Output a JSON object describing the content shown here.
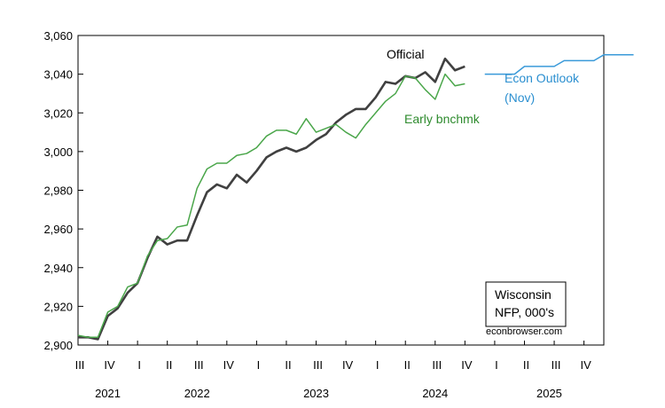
{
  "chart_data": {
    "type": "line",
    "title": "",
    "xlabel": "",
    "ylabel": "",
    "ylim": [
      2900,
      3060
    ],
    "y_ticks": [
      "2,900",
      "2,920",
      "2,940",
      "2,960",
      "2,980",
      "3,000",
      "3,020",
      "3,040",
      "3,060"
    ],
    "y_tick_values": [
      2900,
      2920,
      2940,
      2960,
      2980,
      3000,
      3020,
      3040,
      3060
    ],
    "xlim": [
      2021.5,
      2025.9167
    ],
    "quarter_ticks": [
      "III",
      "IV",
      "I",
      "II",
      "III",
      "IV",
      "I",
      "II",
      "III",
      "IV",
      "I",
      "II",
      "III",
      "IV",
      "I",
      "II",
      "III",
      "IV"
    ],
    "years": [
      "2021",
      "2022",
      "2023",
      "2024",
      "2025"
    ],
    "grid": false,
    "legend": "none",
    "annotations": {
      "official": "Official",
      "early": "Early bnchmk",
      "outlook_line1": "Econ Outlook",
      "outlook_line2": "(Nov)",
      "box_line1": "Wisconsin",
      "box_line2": "NFP, 000's",
      "source": "econbrowser.com"
    },
    "colors": {
      "official": "#404040",
      "early": "#4aa64a",
      "outlook": "#3a9ad9",
      "early_label": "#2e8b2e",
      "outlook_label": "#2b8fd0"
    },
    "series": [
      {
        "name": "Official",
        "start": "2021-07",
        "values": [
          2904,
          2904,
          2903,
          2915,
          2919,
          2927,
          2932,
          2945,
          2956,
          2952,
          2954,
          2954,
          2967,
          2979,
          2983,
          2981,
          2988,
          2984,
          2990,
          2997,
          3000,
          3002,
          3000,
          3002,
          3006,
          3009,
          3015,
          3019,
          3022,
          3022,
          3028,
          3036,
          3035,
          3039,
          3038,
          3041,
          3036,
          3048,
          3042,
          3044
        ]
      },
      {
        "name": "Early bnchmk",
        "start": "2021-07",
        "values": [
          2905,
          2904,
          2904,
          2917,
          2920,
          2930,
          2932,
          2946,
          2954,
          2955,
          2961,
          2962,
          2981,
          2991,
          2994,
          2994,
          2998,
          2999,
          3002,
          3008,
          3011,
          3011,
          3009,
          3017,
          3010,
          3012,
          3014,
          3010,
          3007,
          3014,
          3020,
          3026,
          3030,
          3039,
          3038,
          3032,
          3027,
          3040,
          3034,
          3035
        ]
      },
      {
        "name": "Econ Outlook (Nov)",
        "start": "2024-12",
        "values": [
          3040,
          3040,
          3040,
          3040,
          3044,
          3044,
          3044,
          3044,
          3047,
          3047,
          3047,
          3047,
          3050,
          3050,
          3050,
          3050
        ]
      }
    ]
  }
}
